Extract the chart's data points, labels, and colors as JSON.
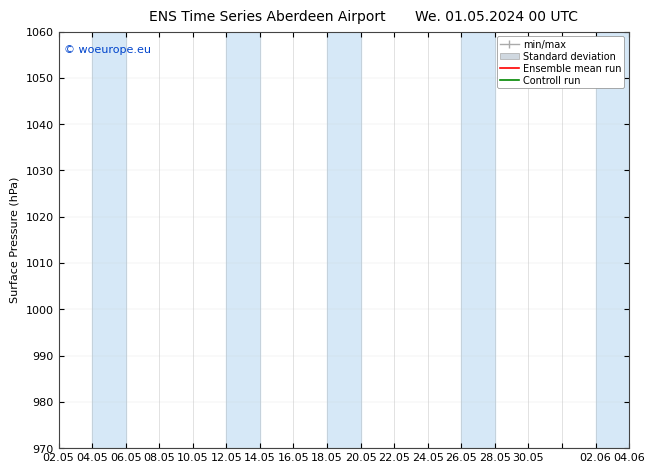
{
  "title_left": "ENS Time Series Aberdeen Airport",
  "title_right": "We. 01.05.2024 00 UTC",
  "ylabel": "Surface Pressure (hPa)",
  "ylim": [
    970,
    1060
  ],
  "yticks": [
    970,
    980,
    990,
    1000,
    1010,
    1020,
    1030,
    1040,
    1050,
    1060
  ],
  "x_labels": [
    "02.05",
    "04.05",
    "06.05",
    "08.05",
    "10.05",
    "12.05",
    "14.05",
    "16.05",
    "18.05",
    "20.05",
    "22.05",
    "24.05",
    "26.05",
    "28.05",
    "30.05",
    "",
    "02.06",
    "04.06"
  ],
  "n_xticks": 18,
  "bg_color": "#ffffff",
  "plot_bg_color": "#ffffff",
  "stripe_color": "#d6e8f7",
  "stripe_indices": [
    1,
    2,
    5,
    6,
    8,
    9,
    12,
    13,
    16,
    17
  ],
  "legend_labels": [
    "min/max",
    "Standard deviation",
    "Ensemble mean run",
    "Controll run"
  ],
  "legend_line_color": "#aaaaaa",
  "legend_patch_color": "#d0d8e0",
  "legend_red": "#ff0000",
  "legend_green": "#008800",
  "watermark": "© woeurope.eu",
  "watermark_color": "#0044cc",
  "title_fontsize": 10,
  "label_fontsize": 8,
  "tick_fontsize": 8
}
